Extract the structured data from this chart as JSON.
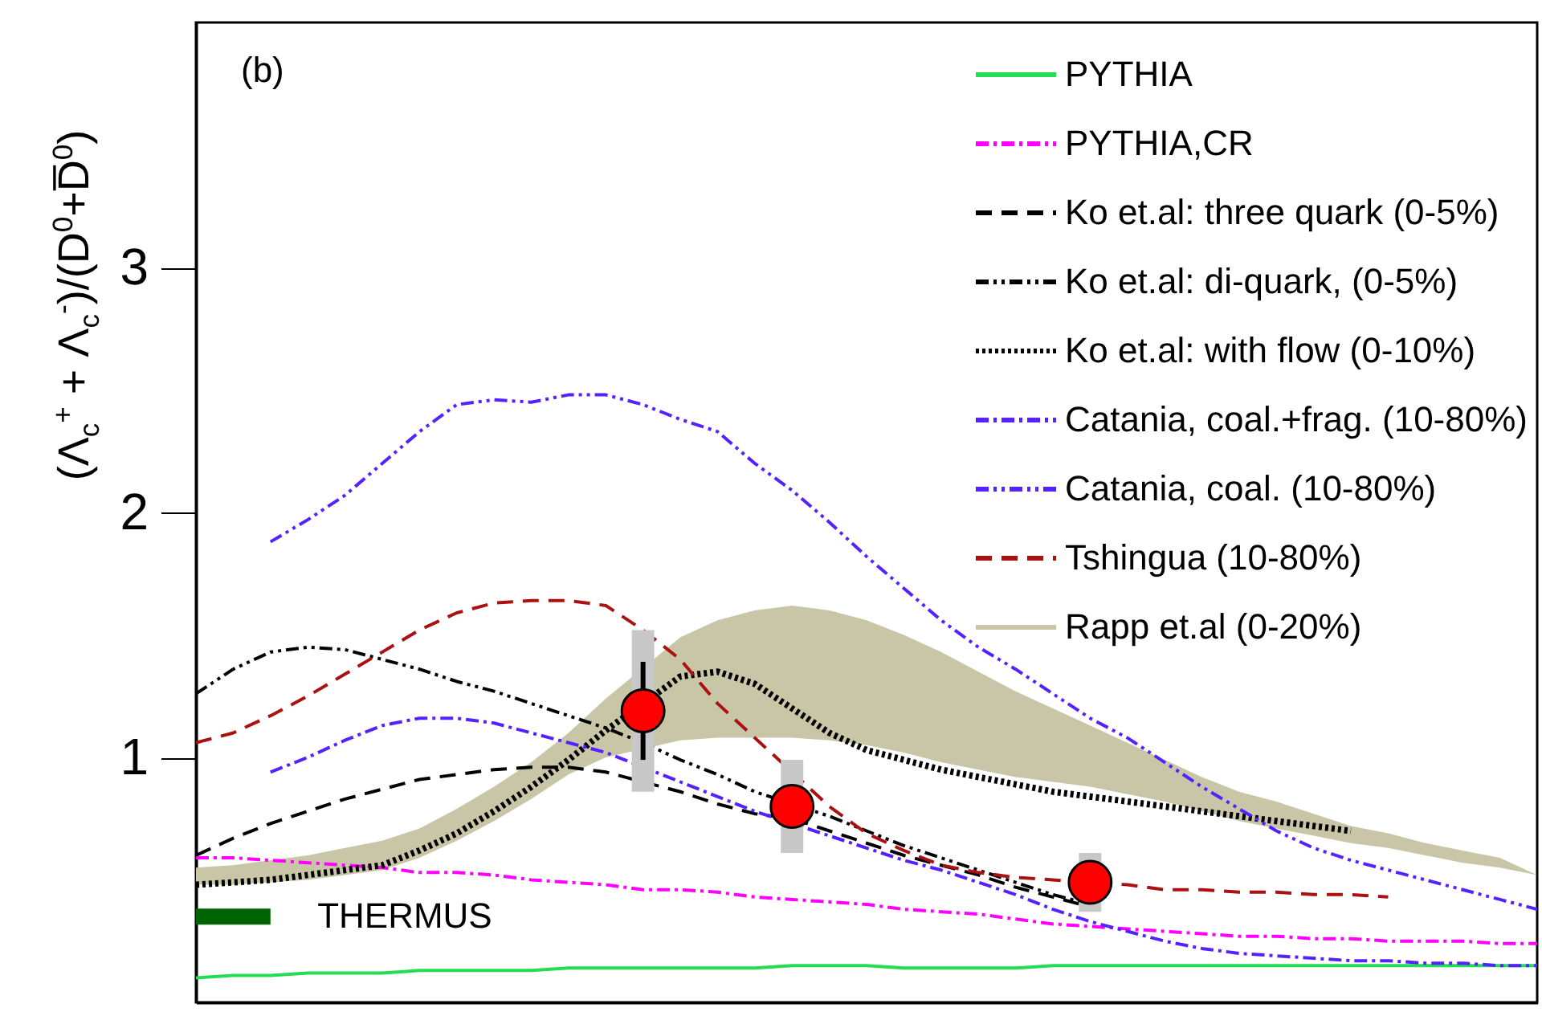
{
  "chart_data": {
    "type": "line",
    "ylabel": "(Λ$_{c}$$^{+}$ + Λ$_{c}$$^{-}$)/(D$^{0}$+D̅$^{0}$)",
    "annotations": [
      "(b)"
    ],
    "categories": [
      null,
      null,
      null,
      null,
      null,
      null,
      null,
      null,
      null,
      null,
      null,
      null,
      null,
      null,
      null,
      null,
      null,
      null,
      null,
      null,
      null,
      null,
      null,
      null,
      null,
      null,
      null,
      null,
      null,
      null,
      null,
      null,
      null,
      null,
      null,
      null,
      null
    ],
    "ylim": [
      0,
      4
    ],
    "yticks": [
      1,
      2,
      3
    ],
    "tick_labels": "y",
    "legend": "top right",
    "ref_lines": [
      {
        "axis": "y",
        "value": 0.35,
        "label": "THERMUS",
        "color": "#006400"
      }
    ],
    "series": [
      {
        "name": "PYTHIA",
        "color": "#22dd55",
        "line_style": "solid",
        "values": [
          0.1,
          0.11,
          0.11,
          0.12,
          0.12,
          0.12,
          0.13,
          0.13,
          0.13,
          0.13,
          0.14,
          0.14,
          0.14,
          0.14,
          0.14,
          0.14,
          0.15,
          0.15,
          0.15,
          0.14,
          0.14,
          0.14,
          0.14,
          0.15,
          0.15,
          0.15,
          0.15,
          0.15,
          0.15,
          0.15,
          0.15,
          0.15,
          0.15,
          0.15,
          0.15,
          0.15,
          0.15
        ]
      },
      {
        "name": "PYTHIA,CR",
        "color": "#ff00ff",
        "line_style": "dashdot",
        "values": [
          0.59,
          0.59,
          0.58,
          0.57,
          0.56,
          0.55,
          0.53,
          0.53,
          0.52,
          0.5,
          0.49,
          0.48,
          0.46,
          0.46,
          0.45,
          0.43,
          0.42,
          0.41,
          0.4,
          0.38,
          0.37,
          0.36,
          0.34,
          0.32,
          0.31,
          0.3,
          0.29,
          0.28,
          0.27,
          0.27,
          0.26,
          0.26,
          0.25,
          0.25,
          0.25,
          0.24,
          0.24
        ]
      },
      {
        "name": "Ko et.al: three quark (0-5%)",
        "color": "#000000",
        "line_style": "dashed",
        "values": [
          0.6,
          0.67,
          0.73,
          0.78,
          0.83,
          0.87,
          0.91,
          0.93,
          0.95,
          0.96,
          0.96,
          0.94,
          null,
          0.86,
          0.81,
          0.77,
          0.75,
          0.7,
          0.65,
          0.6,
          0.56,
          0.52,
          0.47,
          0.43,
          0.39,
          null,
          null,
          null,
          null,
          null,
          null,
          null,
          null,
          null,
          null,
          null,
          null
        ]
      },
      {
        "name": "Ko et.al: di-quark, (0-5%)",
        "color": "#000000",
        "line_style": "dashdotdot",
        "values": [
          1.26,
          1.36,
          1.43,
          1.45,
          1.44,
          1.4,
          1.36,
          1.31,
          1.27,
          1.22,
          1.17,
          1.12,
          1.06,
          0.99,
          0.93,
          0.86,
          null,
          0.76,
          0.7,
          0.64,
          0.59,
          0.54,
          0.49,
          0.44,
          0.4,
          null,
          null,
          null,
          null,
          null,
          null,
          null,
          null,
          null,
          null,
          null,
          null
        ]
      },
      {
        "name": "Ko et.al: with flow (0-10%)",
        "color": "#000000",
        "line_style": "dotted",
        "values": [
          0.48,
          0.49,
          0.5,
          0.52,
          0.54,
          0.56,
          0.62,
          0.69,
          0.78,
          0.88,
          0.99,
          1.11,
          null,
          1.33,
          1.35,
          1.3,
          1.2,
          1.1,
          1.03,
          0.99,
          0.95,
          0.92,
          0.89,
          0.86,
          0.84,
          0.82,
          0.8,
          0.78,
          0.76,
          0.74,
          0.72,
          0.7,
          null,
          null,
          null,
          null,
          null
        ]
      },
      {
        "name": "Catania, coal.+frag. (10-80%)",
        "color": "#5522ff",
        "line_style": "dashdot",
        "values": [
          null,
          null,
          0.94,
          1.0,
          1.07,
          1.13,
          1.16,
          1.16,
          1.14,
          1.1,
          1.06,
          1.02,
          null,
          0.9,
          0.84,
          0.78,
          null,
          0.68,
          0.63,
          0.58,
          0.54,
          0.49,
          0.44,
          0.38,
          0.33,
          0.29,
          0.25,
          0.22,
          0.2,
          0.19,
          0.18,
          0.17,
          0.17,
          0.16,
          0.16,
          0.15,
          0.15
        ]
      },
      {
        "name": "Catania, coal. (10-80%)",
        "color": "#5522ff",
        "line_style": "dashdotdot",
        "values": [
          null,
          null,
          1.88,
          1.97,
          2.07,
          2.2,
          2.33,
          2.44,
          2.46,
          2.45,
          2.48,
          2.48,
          2.44,
          2.38,
          2.33,
          2.2,
          2.09,
          1.96,
          1.82,
          1.69,
          1.56,
          1.45,
          1.36,
          1.26,
          1.16,
          1.08,
          0.98,
          0.88,
          0.79,
          0.7,
          0.63,
          0.58,
          0.54,
          0.5,
          0.46,
          0.42,
          0.38
        ]
      },
      {
        "name": "Tshingua (10-80%)",
        "color": "#aa1111",
        "line_style": "dashed",
        "values": [
          1.06,
          1.1,
          1.17,
          1.25,
          1.34,
          1.43,
          1.52,
          1.59,
          1.63,
          1.64,
          1.64,
          1.62,
          1.52,
          1.4,
          1.22,
          1.08,
          null,
          0.8,
          0.69,
          0.62,
          0.56,
          0.53,
          0.51,
          0.5,
          0.49,
          0.48,
          0.46,
          0.46,
          0.45,
          0.45,
          0.44,
          0.44,
          0.43,
          null,
          null,
          null,
          null
        ]
      },
      {
        "name": "Rapp et.al (0-20%)",
        "type": "area",
        "color": "#c9c6a8",
        "values": [
          null,
          null,
          null,
          null,
          null,
          null,
          null,
          null,
          null,
          null,
          null,
          null,
          null,
          null,
          null,
          null,
          null,
          null,
          null,
          null,
          null,
          null,
          null,
          null,
          null,
          null,
          null,
          null,
          null,
          null,
          null,
          null,
          null,
          null,
          null,
          null,
          null
        ],
        "upper": [
          0.55,
          0.56,
          0.58,
          0.6,
          0.63,
          0.66,
          0.71,
          0.79,
          0.88,
          0.98,
          1.1,
          1.24,
          null,
          1.49,
          1.56,
          1.6,
          1.62,
          1.6,
          1.56,
          1.5,
          1.43,
          1.35,
          1.27,
          1.2,
          1.13,
          1.06,
          0.99,
          0.92,
          0.86,
          0.82,
          0.77,
          0.72,
          0.69,
          0.65,
          0.62,
          0.59,
          0.52
        ],
        "lower": [
          0.48,
          0.48,
          0.49,
          0.5,
          0.52,
          0.54,
          0.59,
          0.66,
          0.74,
          0.83,
          0.93,
          1.0,
          null,
          1.07,
          1.08,
          1.08,
          1.08,
          1.07,
          1.05,
          1.02,
          0.98,
          0.95,
          0.92,
          0.9,
          0.88,
          0.85,
          0.82,
          0.78,
          0.74,
          0.71,
          0.68,
          0.65,
          0.63,
          0.6,
          0.57,
          0.55,
          0.52
        ]
      },
      {
        "type": "bar",
        "color": "#c8c8c8",
        "base": [
          null,
          null,
          null,
          null,
          null,
          null,
          null,
          null,
          null,
          null,
          null,
          null,
          0.86,
          null,
          null,
          null,
          0.61,
          null,
          null,
          null,
          null,
          null,
          null,
          null,
          0.37,
          null,
          null,
          null,
          null,
          null,
          null,
          null,
          null,
          null,
          null,
          null,
          null
        ],
        "values": [
          null,
          null,
          null,
          null,
          null,
          null,
          null,
          null,
          null,
          null,
          null,
          null,
          0.66,
          null,
          null,
          null,
          0.38,
          null,
          null,
          null,
          null,
          null,
          null,
          null,
          0.24,
          null,
          null,
          null,
          null,
          null,
          null,
          null,
          null,
          null,
          null,
          null,
          null
        ]
      },
      {
        "type": "scatter",
        "color": "#ff0000",
        "marker": "circle",
        "values": [
          null,
          null,
          null,
          null,
          null,
          null,
          null,
          null,
          null,
          null,
          null,
          null,
          1.19,
          null,
          null,
          null,
          0.8,
          null,
          null,
          null,
          null,
          null,
          null,
          null,
          0.49,
          null,
          null,
          null,
          null,
          null,
          null,
          null,
          null,
          null,
          null,
          null,
          null
        ],
        "errors": [
          null,
          null,
          null,
          null,
          null,
          null,
          null,
          null,
          null,
          null,
          null,
          null,
          [
            0.99,
            1.39
          ],
          null,
          null,
          null,
          null,
          null,
          null,
          null,
          null,
          null,
          null,
          null,
          null,
          null,
          null,
          null,
          null,
          null,
          null,
          null,
          null,
          null,
          null,
          null,
          null
        ]
      }
    ]
  }
}
